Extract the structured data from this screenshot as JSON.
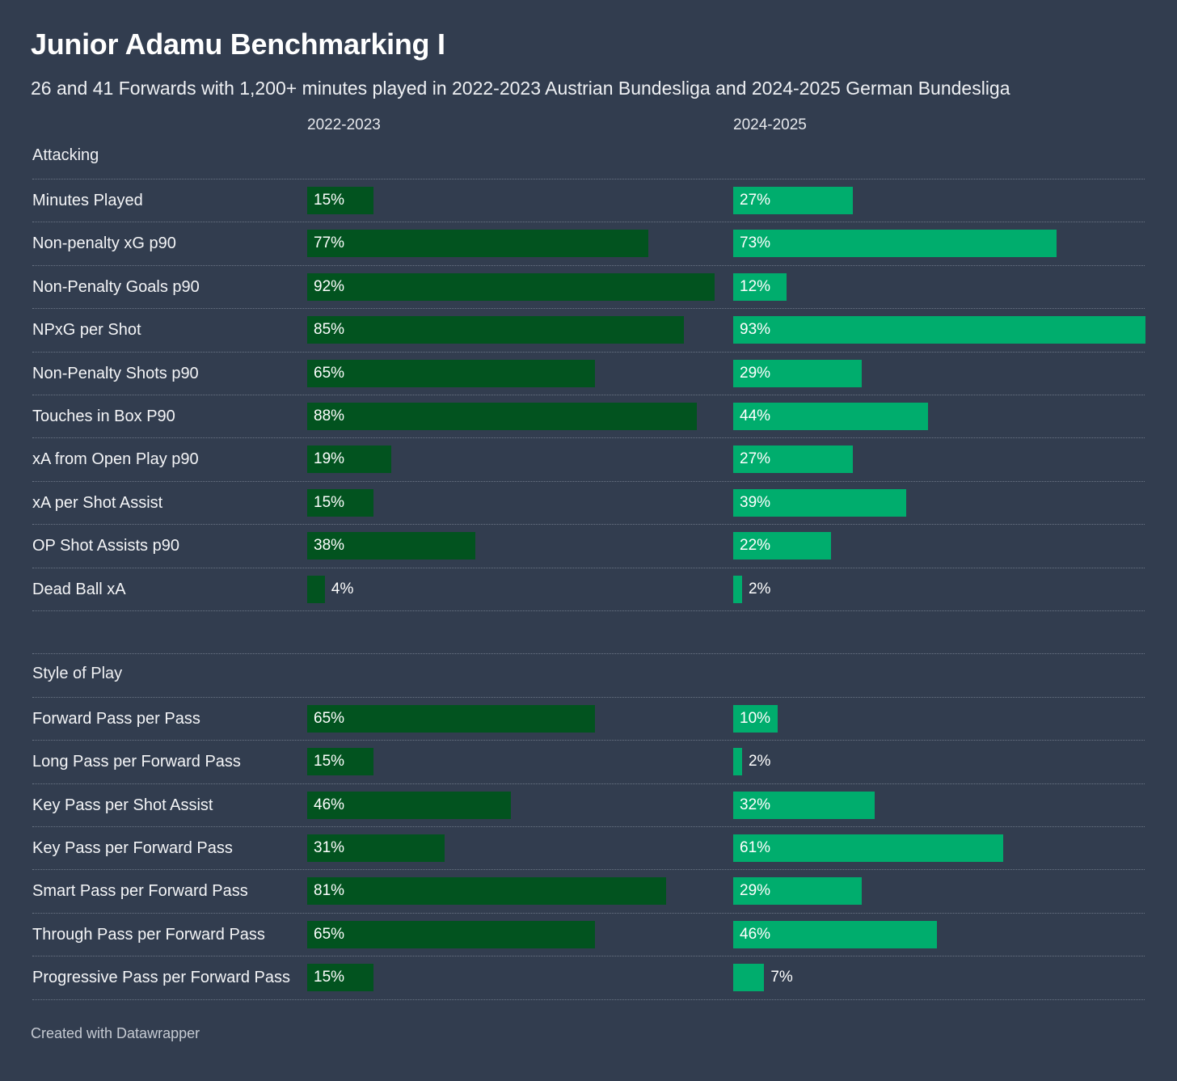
{
  "title": "Junior Adamu Benchmarking I",
  "subtitle": "26 and 41 Forwards with 1,200+ minutes played in 2022-2023 Austrian Bundesliga and 2024-2025 German Bundesliga",
  "footer": "Created with Datawrapper",
  "colors": {
    "background": "#323d4f",
    "series_2022": "#02531f",
    "series_2024": "#00ad6d"
  },
  "chart_data": {
    "type": "bar",
    "orientation": "horizontal",
    "units": "percentile (%)",
    "value_range": [
      0,
      100
    ],
    "series_names": [
      "2022-2023",
      "2024-2025"
    ],
    "sections": [
      {
        "name": "Attacking",
        "rows": [
          {
            "label": "Minutes Played",
            "v1": 15,
            "v2": 27
          },
          {
            "label": "Non-penalty xG p90",
            "v1": 77,
            "v2": 73
          },
          {
            "label": "Non-Penalty Goals p90",
            "v1": 92,
            "v2": 12
          },
          {
            "label": "NPxG per Shot",
            "v1": 85,
            "v2": 93
          },
          {
            "label": "Non-Penalty Shots p90",
            "v1": 65,
            "v2": 29
          },
          {
            "label": "Touches in Box P90",
            "v1": 88,
            "v2": 44
          },
          {
            "label": "xA from Open Play p90",
            "v1": 19,
            "v2": 27
          },
          {
            "label": "xA per Shot Assist",
            "v1": 15,
            "v2": 39
          },
          {
            "label": "OP Shot Assists p90",
            "v1": 38,
            "v2": 22
          },
          {
            "label": "Dead Ball xA",
            "v1": 4,
            "v2": 2
          }
        ]
      },
      {
        "name": "Style of Play",
        "rows": [
          {
            "label": "Forward Pass per Pass",
            "v1": 65,
            "v2": 10
          },
          {
            "label": "Long Pass per Forward Pass",
            "v1": 15,
            "v2": 2
          },
          {
            "label": "Key Pass per Shot Assist",
            "v1": 46,
            "v2": 32
          },
          {
            "label": "Key Pass per Forward Pass",
            "v1": 31,
            "v2": 61
          },
          {
            "label": "Smart Pass per Forward Pass",
            "v1": 81,
            "v2": 29
          },
          {
            "label": "Through Pass per Forward Pass",
            "v1": 65,
            "v2": 46
          },
          {
            "label": "Progressive Pass per Forward Pass",
            "v1": 15,
            "v2": 7
          }
        ]
      }
    ]
  }
}
